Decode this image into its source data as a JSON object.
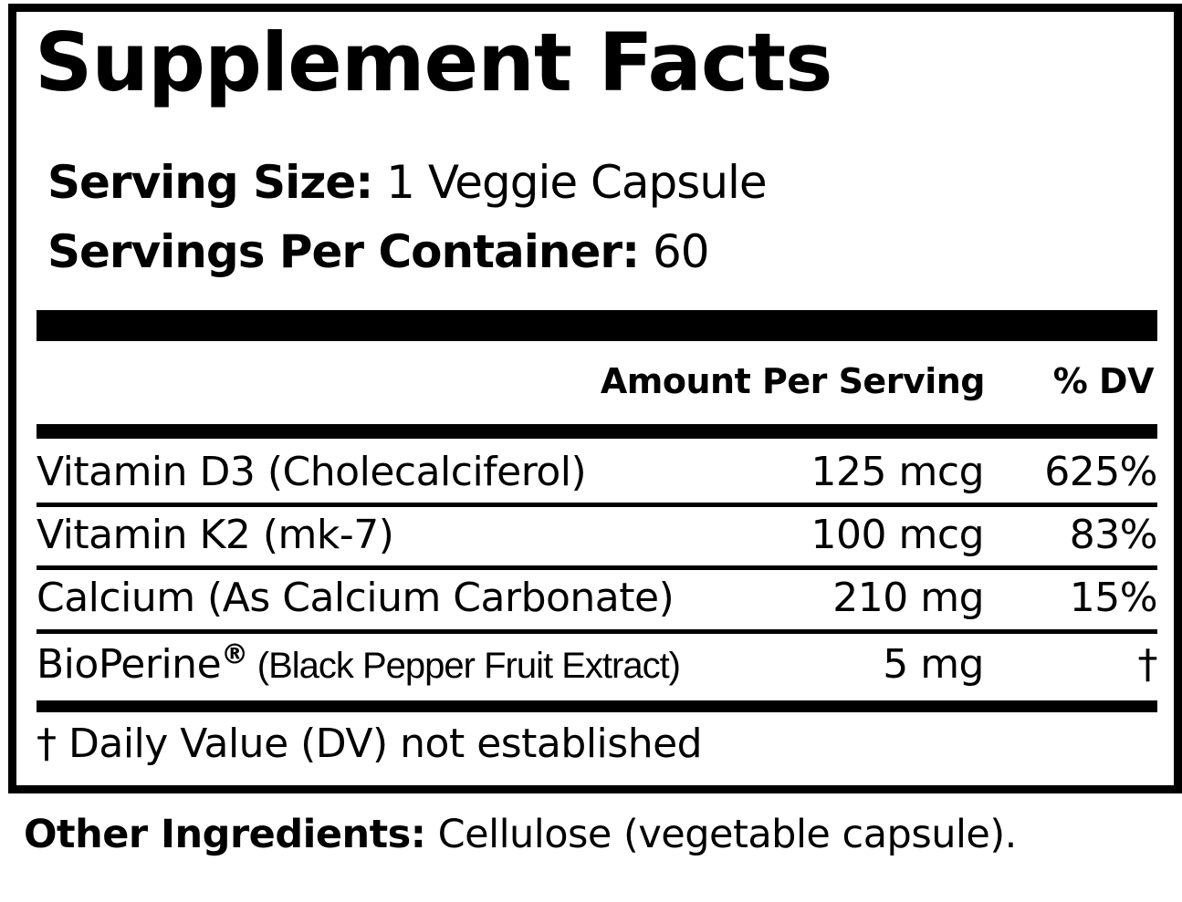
{
  "title": "Supplement Facts",
  "serving": {
    "size_label": "Serving Size:",
    "size_value": "1 Veggie Capsule",
    "per_container_label": "Servings Per Container:",
    "per_container_value": "60"
  },
  "table": {
    "header_amount": "Amount Per Serving",
    "header_dv": "% DV",
    "rows": [
      {
        "name": "Vitamin D3 (Cholecalciferol)",
        "amount": "125 mcg",
        "dv": "625%"
      },
      {
        "name": "Vitamin K2 (mk-7)",
        "amount": "100 mcg",
        "dv": "83%"
      },
      {
        "name": "Calcium (As Calcium Carbonate)",
        "amount": "210 mg",
        "dv": "15%"
      },
      {
        "name": "BioPerine",
        "name_mark": "®",
        "name_detail": " (Black Pepper Fruit Extract)",
        "amount": "5 mg",
        "dv": "†"
      }
    ]
  },
  "footnote": "† Daily Value (DV) not established",
  "other_ingredients": {
    "label": "Other Ingredients:",
    "value": " Cellulose (vegetable capsule)."
  }
}
